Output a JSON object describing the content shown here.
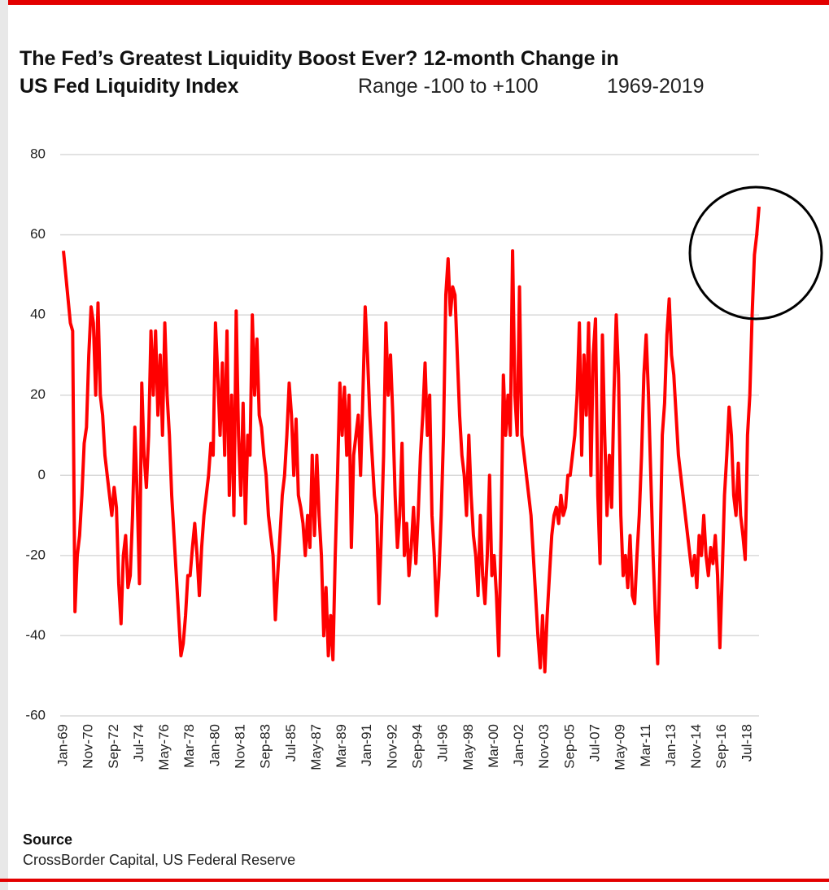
{
  "chart_data": {
    "type": "line",
    "title": "The Fed’s Greatest Liquidity Boost Ever? 12-month Change in",
    "title_line2": "US Fed Liquidity Index",
    "subtitle": "Range -100 to +100",
    "period": "1969-2019",
    "source_label": "Source",
    "source": "CrossBorder Capital, US Federal Reserve",
    "color": "#ff0000",
    "grid": true,
    "ylim": [
      -60,
      80
    ],
    "yticks": [
      -60,
      -40,
      -20,
      0,
      20,
      40,
      60,
      80
    ],
    "categories": [
      "Jan-69",
      null,
      null,
      null,
      null,
      null,
      null,
      null,
      null,
      null,
      null,
      "Nov-70",
      null,
      null,
      null,
      null,
      null,
      null,
      null,
      null,
      null,
      null,
      "Sep-72",
      null,
      null,
      null,
      null,
      null,
      null,
      null,
      null,
      null,
      null,
      "Jul-74",
      null,
      null,
      null,
      null,
      null,
      null,
      null,
      null,
      null,
      null,
      "May-76",
      null,
      null,
      null,
      null,
      null,
      null,
      null,
      null,
      null,
      null,
      "Mar-78",
      null,
      null,
      null,
      null,
      null,
      null,
      null,
      null,
      null,
      null,
      "Jan-80",
      null,
      null,
      null,
      null,
      null,
      null,
      null,
      null,
      null,
      null,
      "Nov-81",
      null,
      null,
      null,
      null,
      null,
      null,
      null,
      null,
      null,
      null,
      "Sep-83",
      null,
      null,
      null,
      null,
      null,
      null,
      null,
      null,
      null,
      null,
      "Jul-85",
      null,
      null,
      null,
      null,
      null,
      null,
      null,
      null,
      null,
      null,
      "May-87",
      null,
      null,
      null,
      null,
      null,
      null,
      null,
      null,
      null,
      null,
      "Mar-89",
      null,
      null,
      null,
      null,
      null,
      null,
      null,
      null,
      null,
      null,
      "Jan-91",
      null,
      null,
      null,
      null,
      null,
      null,
      null,
      null,
      null,
      null,
      "Nov-92",
      null,
      null,
      null,
      null,
      null,
      null,
      null,
      null,
      null,
      null,
      "Sep-94",
      null,
      null,
      null,
      null,
      null,
      null,
      null,
      null,
      null,
      null,
      "Jul-96",
      null,
      null,
      null,
      null,
      null,
      null,
      null,
      null,
      null,
      null,
      "May-98",
      null,
      null,
      null,
      null,
      null,
      null,
      null,
      null,
      null,
      null,
      "Mar-00",
      null,
      null,
      null,
      null,
      null,
      null,
      null,
      null,
      null,
      null,
      "Jan-02",
      null,
      null,
      null,
      null,
      null,
      null,
      null,
      null,
      null,
      null,
      "Nov-03",
      null,
      null,
      null,
      null,
      null,
      null,
      null,
      null,
      null,
      null,
      "Sep-05",
      null,
      null,
      null,
      null,
      null,
      null,
      null,
      null,
      null,
      null,
      "Jul-07",
      null,
      null,
      null,
      null,
      null,
      null,
      null,
      null,
      null,
      null,
      "May-09",
      null,
      null,
      null,
      null,
      null,
      null,
      null,
      null,
      null,
      null,
      "Mar-11",
      null,
      null,
      null,
      null,
      null,
      null,
      null,
      null,
      null,
      null,
      "Jan-13",
      null,
      null,
      null,
      null,
      null,
      null,
      null,
      null,
      null,
      null,
      "Nov-14",
      null,
      null,
      null,
      null,
      null,
      null,
      null,
      null,
      null,
      null,
      "Sep-16",
      null,
      null,
      null,
      null,
      null,
      null,
      null,
      null,
      null,
      null,
      "Jul-18",
      null,
      null,
      null,
      null,
      null
    ],
    "values": [
      56,
      50,
      44,
      38,
      36,
      -34,
      -20,
      -15,
      -5,
      8,
      12,
      30,
      42,
      38,
      20,
      43,
      20,
      15,
      5,
      0,
      -5,
      -10,
      -3,
      -8,
      -27,
      -37,
      -20,
      -15,
      -28,
      -25,
      -10,
      12,
      -5,
      -27,
      23,
      5,
      -3,
      10,
      36,
      20,
      36,
      15,
      30,
      10,
      38,
      20,
      10,
      -5,
      -15,
      -25,
      -35,
      -45,
      -42,
      -35,
      -25,
      -25,
      -18,
      -12,
      -20,
      -30,
      -18,
      -10,
      -5,
      0,
      8,
      5,
      38,
      25,
      10,
      28,
      5,
      36,
      -5,
      20,
      -10,
      41,
      10,
      -5,
      18,
      -12,
      10,
      5,
      40,
      20,
      34,
      15,
      12,
      5,
      0,
      -10,
      -15,
      -20,
      -36,
      -25,
      -15,
      -5,
      0,
      10,
      23,
      15,
      0,
      14,
      -5,
      -8,
      -12,
      -20,
      -10,
      -18,
      5,
      -15,
      5,
      -10,
      -20,
      -40,
      -28,
      -45,
      -35,
      -46,
      -20,
      0,
      23,
      10,
      22,
      5,
      20,
      -18,
      5,
      10,
      15,
      0,
      20,
      42,
      30,
      15,
      5,
      -5,
      -10,
      -32,
      -15,
      5,
      38,
      20,
      30,
      15,
      -5,
      -18,
      -10,
      8,
      -20,
      -12,
      -25,
      -18,
      -8,
      -22,
      -10,
      5,
      15,
      28,
      10,
      20,
      -10,
      -20,
      -35,
      -25,
      -10,
      10,
      45,
      54,
      40,
      47,
      45,
      30,
      15,
      5,
      0,
      -10,
      10,
      -5,
      -15,
      -20,
      -30,
      -10,
      -25,
      -32,
      -20,
      0,
      -25,
      -20,
      -30,
      -45,
      -15,
      25,
      10,
      20,
      10,
      56,
      20,
      10,
      47,
      10,
      5,
      0,
      -5,
      -10,
      -20,
      -30,
      -40,
      -48,
      -35,
      -49,
      -35,
      -25,
      -15,
      -10,
      -8,
      -12,
      -5,
      -10,
      -8,
      0,
      0,
      5,
      10,
      20,
      38,
      5,
      30,
      15,
      38,
      0,
      30,
      39,
      -5,
      -22,
      35,
      10,
      -10,
      5,
      -8,
      20,
      40,
      25,
      -10,
      -25,
      -20,
      -28,
      -15,
      -30,
      -32,
      -20,
      -10,
      5,
      25,
      35,
      20,
      0,
      -20,
      -35,
      -47,
      -20,
      10,
      18,
      35,
      44,
      30,
      25,
      15,
      5,
      0,
      -5,
      -10,
      -15,
      -20,
      -25,
      -20,
      -28,
      -15,
      -20,
      -10,
      -20,
      -25,
      -18,
      -22,
      -15,
      -25,
      -43,
      -25,
      -5,
      5,
      17,
      10,
      -5,
      -10,
      3,
      -10,
      -15,
      -21,
      10,
      20,
      40,
      55,
      60,
      67
    ]
  }
}
